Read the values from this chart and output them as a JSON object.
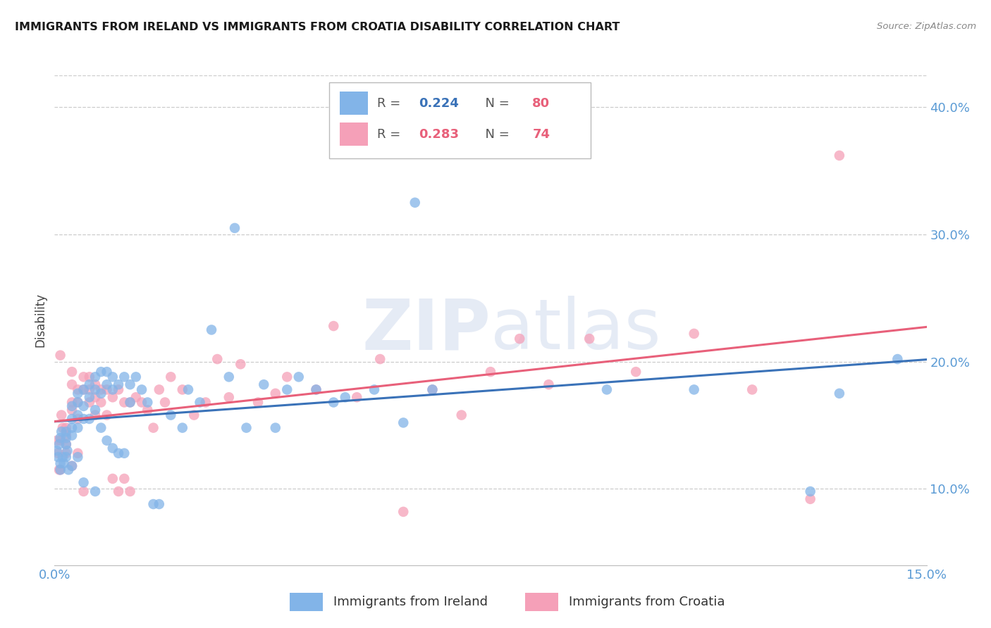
{
  "title": "IMMIGRANTS FROM IRELAND VS IMMIGRANTS FROM CROATIA DISABILITY CORRELATION CHART",
  "source": "Source: ZipAtlas.com",
  "ylabel": "Disability",
  "x_min": 0.0,
  "x_max": 0.15,
  "y_min": 0.04,
  "y_max": 0.425,
  "y_ticks": [
    0.1,
    0.2,
    0.3,
    0.4
  ],
  "y_tick_labels": [
    "10.0%",
    "20.0%",
    "30.0%",
    "40.0%"
  ],
  "ireland_color": "#82B4E8",
  "croatia_color": "#F5A0B8",
  "ireland_line_color": "#3A72B8",
  "croatia_line_color": "#E8607A",
  "ireland_R": 0.224,
  "ireland_N": 80,
  "croatia_R": 0.283,
  "croatia_N": 74,
  "ireland_label": "Immigrants from Ireland",
  "croatia_label": "Immigrants from Croatia",
  "watermark": "ZIPatlas",
  "ireland_x": [
    0.0004,
    0.0006,
    0.0008,
    0.001,
    0.001,
    0.001,
    0.0012,
    0.0014,
    0.0016,
    0.002,
    0.002,
    0.002,
    0.002,
    0.0022,
    0.0024,
    0.003,
    0.003,
    0.003,
    0.003,
    0.003,
    0.004,
    0.004,
    0.004,
    0.004,
    0.004,
    0.005,
    0.005,
    0.005,
    0.005,
    0.006,
    0.006,
    0.006,
    0.007,
    0.007,
    0.007,
    0.007,
    0.008,
    0.008,
    0.008,
    0.009,
    0.009,
    0.009,
    0.01,
    0.01,
    0.01,
    0.011,
    0.011,
    0.012,
    0.012,
    0.013,
    0.013,
    0.014,
    0.015,
    0.016,
    0.017,
    0.018,
    0.02,
    0.022,
    0.023,
    0.025,
    0.027,
    0.03,
    0.031,
    0.033,
    0.036,
    0.038,
    0.04,
    0.042,
    0.045,
    0.048,
    0.05,
    0.055,
    0.06,
    0.062,
    0.065,
    0.095,
    0.11,
    0.13,
    0.135,
    0.145
  ],
  "ireland_y": [
    0.13,
    0.125,
    0.135,
    0.12,
    0.14,
    0.115,
    0.145,
    0.125,
    0.12,
    0.145,
    0.14,
    0.135,
    0.125,
    0.13,
    0.115,
    0.165,
    0.155,
    0.148,
    0.142,
    0.118,
    0.175,
    0.168,
    0.158,
    0.148,
    0.125,
    0.178,
    0.165,
    0.155,
    0.105,
    0.182,
    0.172,
    0.155,
    0.188,
    0.178,
    0.162,
    0.098,
    0.192,
    0.175,
    0.148,
    0.192,
    0.182,
    0.138,
    0.188,
    0.178,
    0.132,
    0.182,
    0.128,
    0.188,
    0.128,
    0.182,
    0.168,
    0.188,
    0.178,
    0.168,
    0.088,
    0.088,
    0.158,
    0.148,
    0.178,
    0.168,
    0.225,
    0.188,
    0.305,
    0.148,
    0.182,
    0.148,
    0.178,
    0.188,
    0.178,
    0.168,
    0.172,
    0.178,
    0.152,
    0.325,
    0.178,
    0.178,
    0.178,
    0.098,
    0.175,
    0.202
  ],
  "croatia_x": [
    0.0004,
    0.0006,
    0.0008,
    0.001,
    0.001,
    0.001,
    0.0012,
    0.0014,
    0.002,
    0.002,
    0.002,
    0.002,
    0.003,
    0.003,
    0.003,
    0.003,
    0.003,
    0.004,
    0.004,
    0.004,
    0.004,
    0.005,
    0.005,
    0.005,
    0.006,
    0.006,
    0.006,
    0.007,
    0.007,
    0.007,
    0.008,
    0.008,
    0.009,
    0.009,
    0.01,
    0.01,
    0.011,
    0.011,
    0.012,
    0.012,
    0.013,
    0.013,
    0.014,
    0.015,
    0.016,
    0.017,
    0.018,
    0.019,
    0.02,
    0.022,
    0.024,
    0.026,
    0.028,
    0.03,
    0.032,
    0.035,
    0.038,
    0.04,
    0.045,
    0.048,
    0.052,
    0.056,
    0.06,
    0.065,
    0.07,
    0.075,
    0.08,
    0.085,
    0.092,
    0.1,
    0.11,
    0.12,
    0.13,
    0.135
  ],
  "croatia_y": [
    0.138,
    0.128,
    0.115,
    0.205,
    0.138,
    0.115,
    0.158,
    0.148,
    0.148,
    0.142,
    0.135,
    0.128,
    0.192,
    0.182,
    0.168,
    0.162,
    0.118,
    0.178,
    0.168,
    0.155,
    0.128,
    0.188,
    0.178,
    0.098,
    0.188,
    0.178,
    0.168,
    0.182,
    0.172,
    0.158,
    0.178,
    0.168,
    0.178,
    0.158,
    0.172,
    0.108,
    0.178,
    0.098,
    0.168,
    0.108,
    0.168,
    0.098,
    0.172,
    0.168,
    0.162,
    0.148,
    0.178,
    0.168,
    0.188,
    0.178,
    0.158,
    0.168,
    0.202,
    0.172,
    0.198,
    0.168,
    0.175,
    0.188,
    0.178,
    0.228,
    0.172,
    0.202,
    0.082,
    0.178,
    0.158,
    0.192,
    0.218,
    0.182,
    0.218,
    0.192,
    0.222,
    0.178,
    0.092,
    0.362
  ]
}
